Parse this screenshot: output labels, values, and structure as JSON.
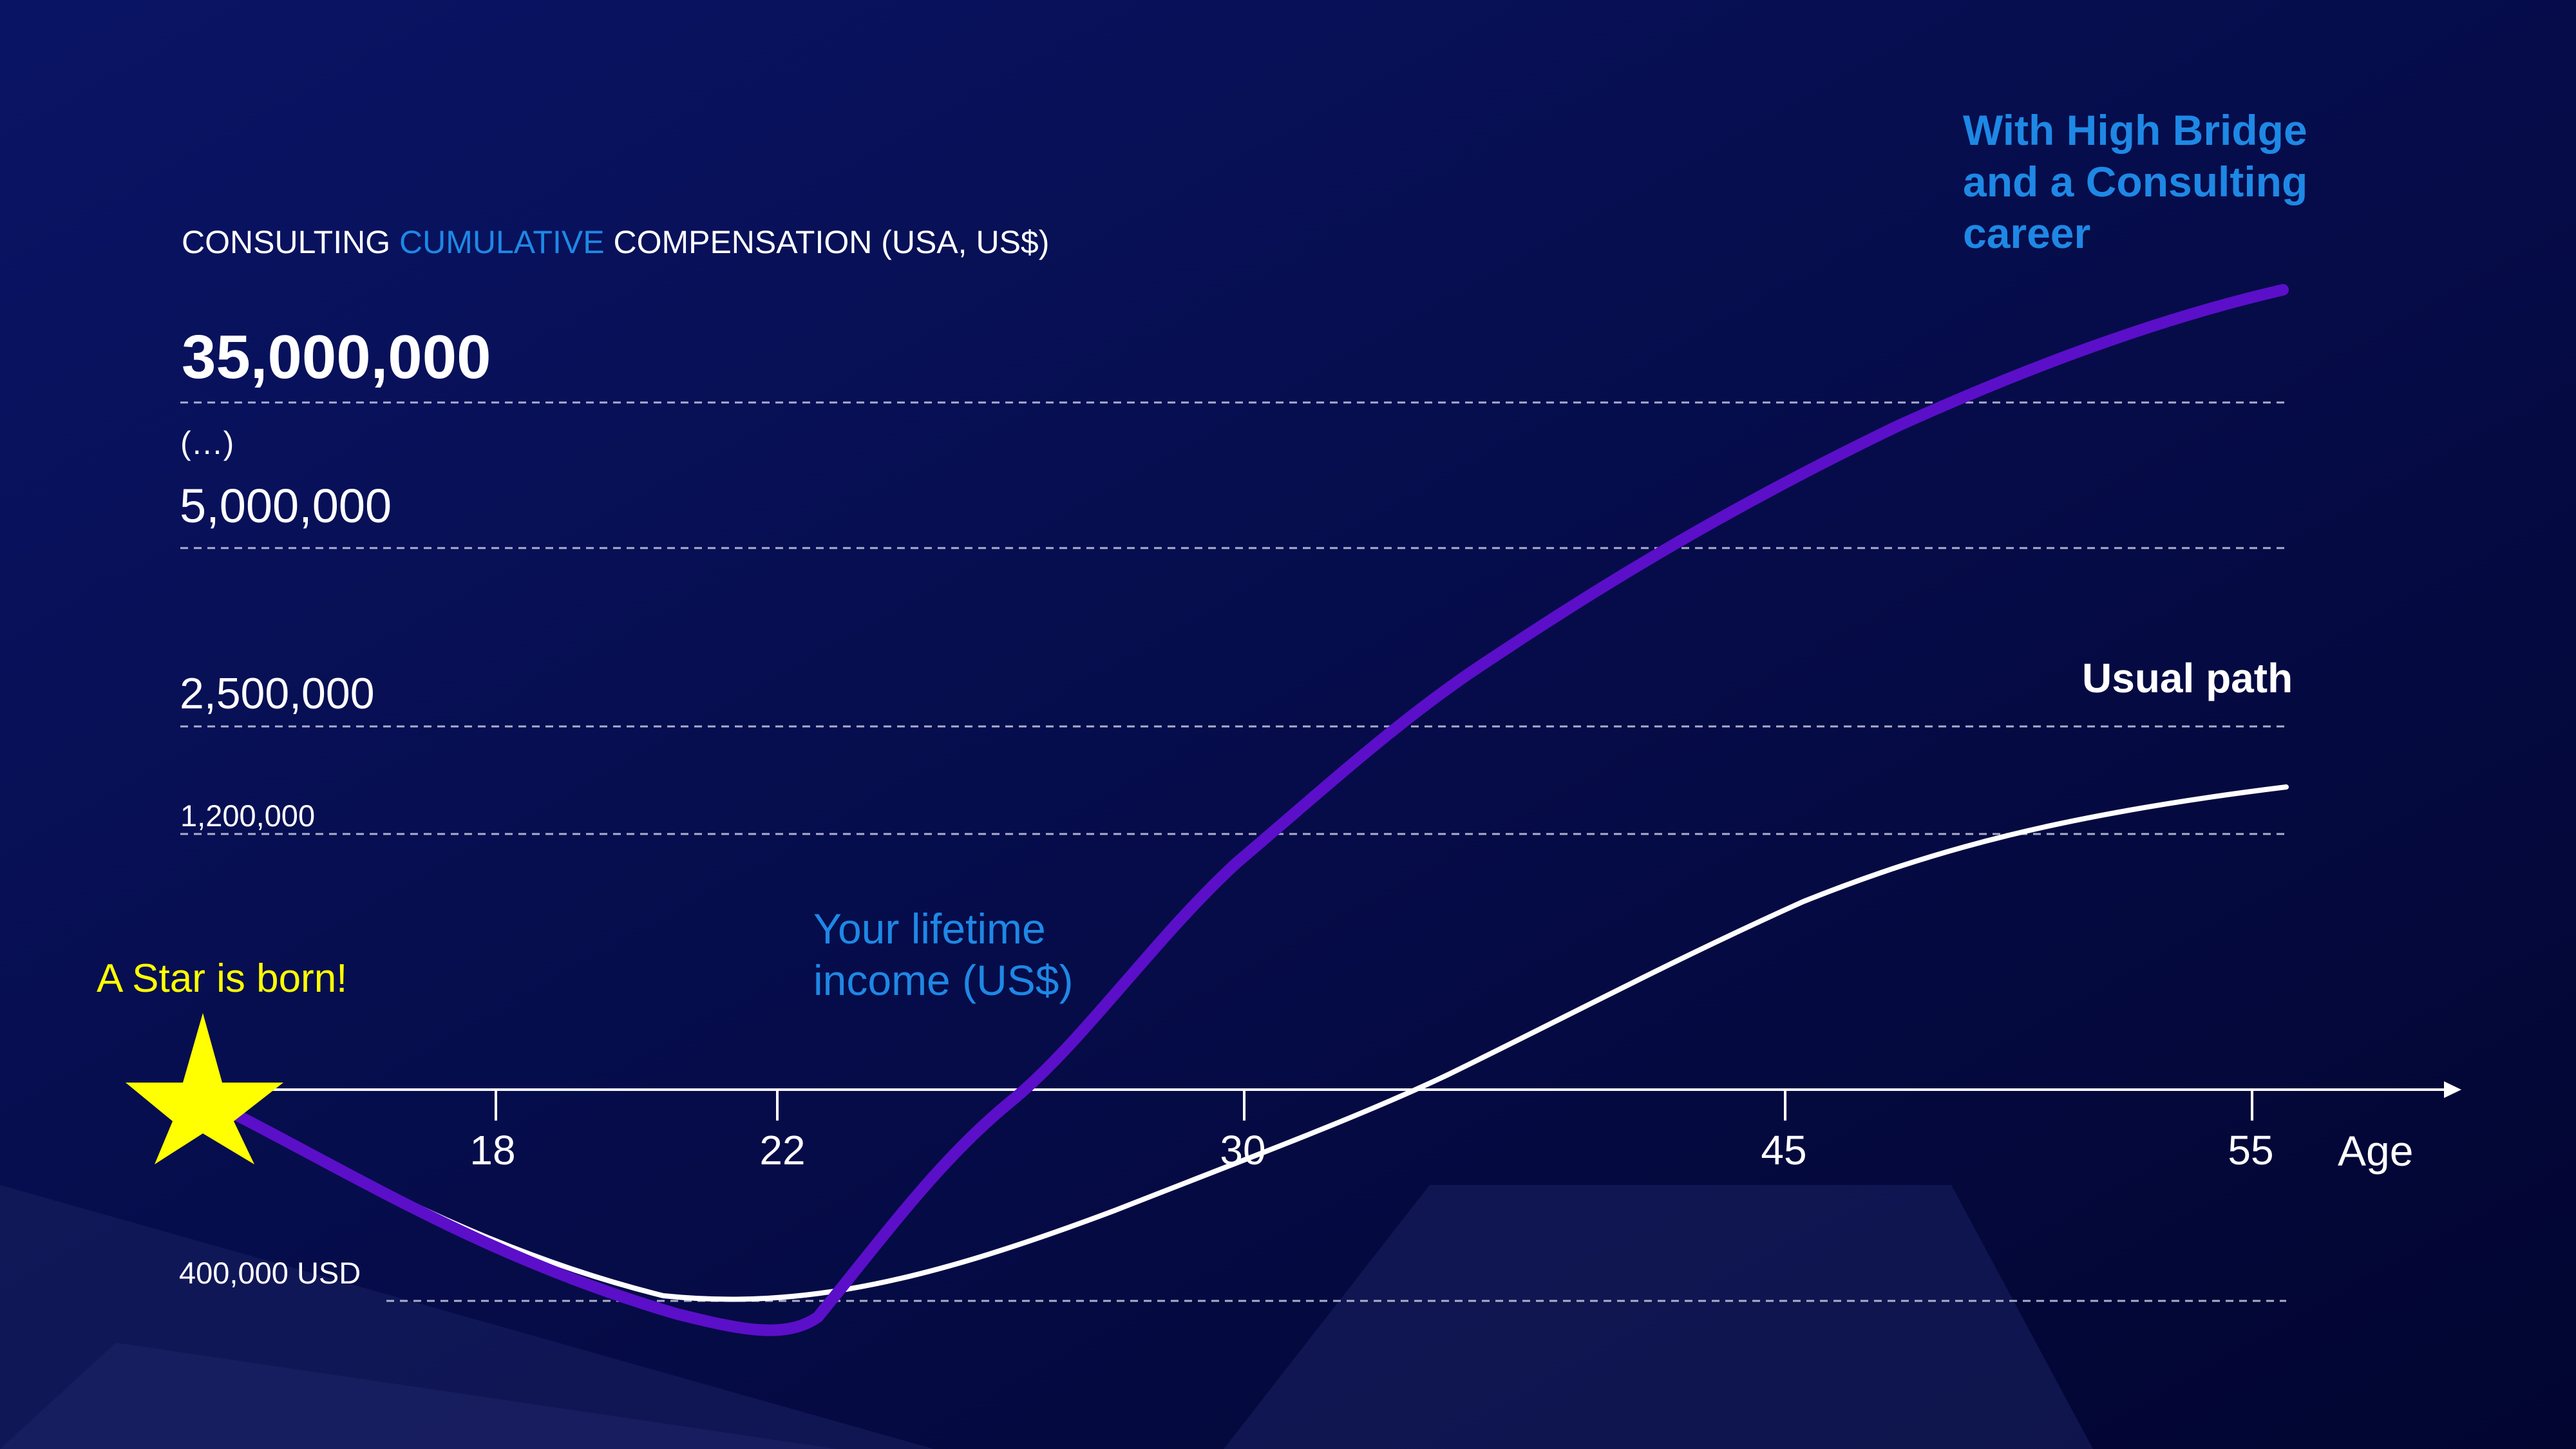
{
  "title": {
    "prefix": "CONSULTING ",
    "highlight": "CUMULATIVE",
    "suffix": " COMPENSATION (USA, US$)"
  },
  "annotations": {
    "star_label": "A Star is born!",
    "lifetime_label_1": "Your lifetime",
    "lifetime_label_2": "income (US$)",
    "highbridge_label_1": "With High Bridge",
    "highbridge_label_2": "and a Consulting",
    "highbridge_label_3": "career",
    "usual_path_label": "Usual path"
  },
  "colors": {
    "background_top": "#0a1465",
    "background_bottom": "#020530",
    "highlight_blue": "#1e88e5",
    "purple_line": "#5b0fc9",
    "white_line": "#ffffff",
    "star": "#ffff00"
  },
  "icons": {
    "star": "star-icon"
  },
  "chart_data": {
    "type": "line",
    "title": "CONSULTING CUMULATIVE COMPENSATION (USA, US$)",
    "xlabel": "Age",
    "ylabel": "",
    "x_ticks": [
      18,
      22,
      30,
      45,
      55
    ],
    "y_ticks": [
      {
        "value": 35000000,
        "label": "35,000,000"
      },
      {
        "value": null,
        "label": "(…)"
      },
      {
        "value": 5000000,
        "label": "5,000,000"
      },
      {
        "value": 2500000,
        "label": "2,500,000"
      },
      {
        "value": 1200000,
        "label": "1,200,000"
      },
      {
        "value": 400000,
        "label": "400,000 USD"
      }
    ],
    "series": [
      {
        "name": "With High Bridge and a Consulting career",
        "color": "#5b0fc9",
        "x": [
          14,
          18,
          22,
          23,
          26,
          30,
          35,
          40,
          45,
          50,
          55
        ],
        "y": [
          null,
          300000,
          380000,
          400000,
          600000,
          1200000,
          2500000,
          3500000,
          5000000,
          10000000,
          35000000
        ]
      },
      {
        "name": "Usual path",
        "color": "#ffffff",
        "x": [
          14,
          18,
          22,
          26,
          30,
          35,
          40,
          45,
          50,
          55
        ],
        "y": [
          null,
          350000,
          400000,
          450000,
          550000,
          700000,
          850000,
          1000000,
          1150000,
          1250000
        ]
      }
    ],
    "legend": "none",
    "grid": "horizontal dashed"
  }
}
